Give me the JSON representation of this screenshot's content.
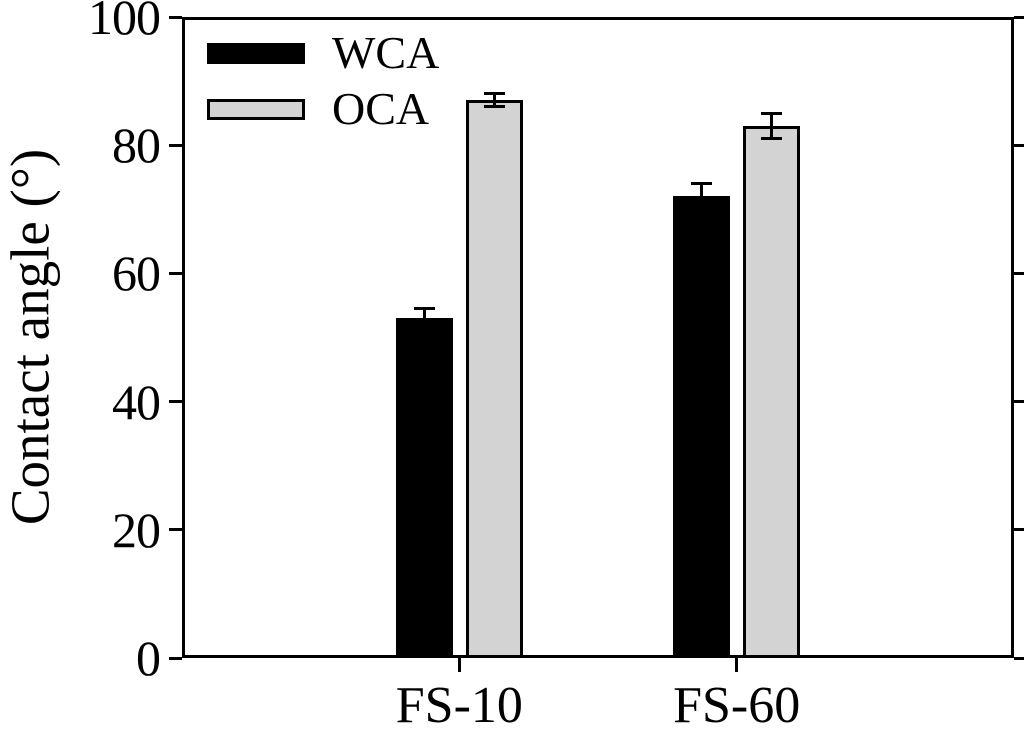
{
  "chart_data": {
    "type": "bar",
    "title": "",
    "xlabel": "",
    "ylabel": "Contact angle (°)",
    "categories": [
      "FS-10",
      "FS-60"
    ],
    "series": [
      {
        "name": "WCA",
        "color": "#000000",
        "values": [
          53,
          72
        ],
        "errors": [
          1.5,
          2
        ]
      },
      {
        "name": "OCA",
        "color": "#d3d3d3",
        "values": [
          87,
          83
        ],
        "errors": [
          1,
          2
        ]
      }
    ],
    "ylim": [
      0,
      100
    ],
    "yticks": [
      0,
      20,
      40,
      60,
      80,
      100
    ],
    "grid": false,
    "legend_position": "upper-left",
    "bar_edge_color": "#000000",
    "error_bar_color": "#000000",
    "background_color": "#ffffff",
    "frame": "full-box"
  }
}
